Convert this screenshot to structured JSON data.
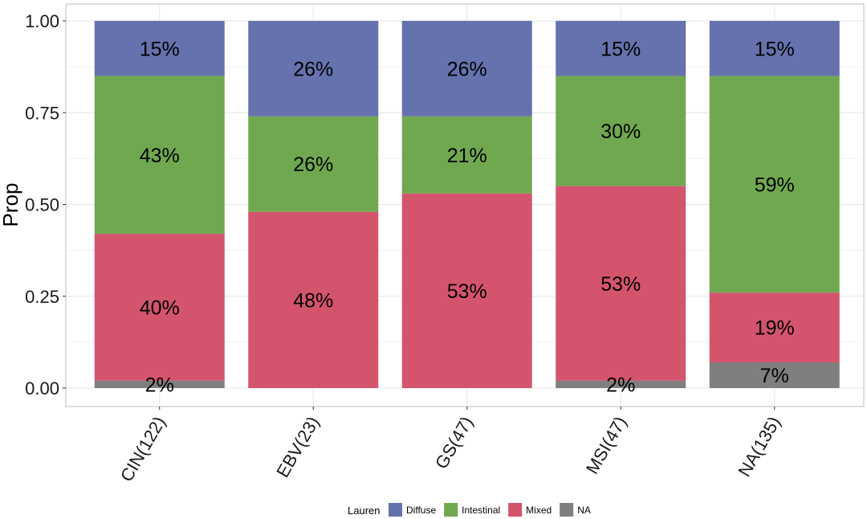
{
  "chart_data": {
    "type": "bar",
    "stacked": true,
    "title": "",
    "xlabel": "",
    "ylabel": "Prop",
    "ylim": [
      0,
      1
    ],
    "yticks": [
      "0.00",
      "0.25",
      "0.50",
      "0.75",
      "1.00"
    ],
    "ytick_values": [
      0,
      0.25,
      0.5,
      0.75,
      1.0
    ],
    "grid": true,
    "categories": [
      "CIN(122)",
      "EBV(23)",
      "GS(47)",
      "MSI(47)",
      "NA(135)"
    ],
    "series": [
      {
        "name": "NA",
        "color": "#7f7f7f",
        "values": [
          0.02,
          0.0,
          0.0,
          0.02,
          0.07
        ],
        "labels": [
          "2%",
          "",
          "",
          "2%",
          "7%"
        ]
      },
      {
        "name": "Mixed",
        "color": "#d4546e",
        "values": [
          0.4,
          0.48,
          0.53,
          0.53,
          0.19
        ],
        "labels": [
          "40%",
          "48%",
          "53%",
          "53%",
          "19%"
        ]
      },
      {
        "name": "Intestinal",
        "color": "#70a84f",
        "values": [
          0.43,
          0.26,
          0.21,
          0.3,
          0.59
        ],
        "labels": [
          "43%",
          "26%",
          "21%",
          "30%",
          "59%"
        ]
      },
      {
        "name": "Diffuse",
        "color": "#6572ad",
        "values": [
          0.15,
          0.26,
          0.26,
          0.15,
          0.15
        ],
        "labels": [
          "15%",
          "26%",
          "26%",
          "15%",
          "15%"
        ]
      }
    ],
    "legend": {
      "title": "Lauren",
      "position": "bottom",
      "order": [
        "Diffuse",
        "Intestinal",
        "Mixed",
        "NA"
      ]
    }
  }
}
